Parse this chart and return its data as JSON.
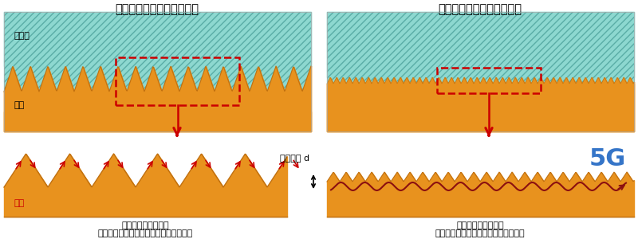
{
  "title_left": "回路表面の粗さが大きいと",
  "title_right": "回路表面の粗さが小さいと",
  "label_dielectric": "誘電体",
  "label_copper": "銅箔",
  "label_signal": "信号",
  "label_skin_depth": "表皮深さ d",
  "label_5g": "5G",
  "caption_left_1": "表皮深さ＜表面粗さ",
  "caption_left_2": "信号伝送路が長い＝信号の損失が増える",
  "caption_right_1": "表皮深さ＞表面粗さ",
  "caption_right_2": "信号伝送路が短い＝信号の損失が減る",
  "color_dielectric": "#8dd8d0",
  "color_copper": "#e8921e",
  "color_bg": "#ffffff",
  "color_red": "#cc0000",
  "color_blue": "#3575c8",
  "color_dark_red": "#8b1010",
  "color_copper_edge": "#c07010"
}
